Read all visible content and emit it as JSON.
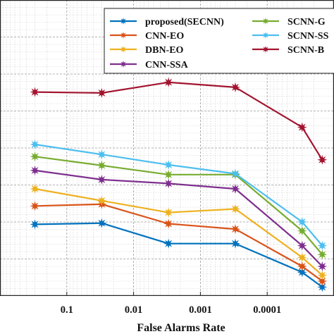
{
  "chart_data": {
    "type": "line",
    "xlabel": "False Alarms Rate",
    "ylabel": "",
    "x_scale": "log-reversed",
    "x_tick_labels": [
      "0.1",
      "0.01",
      "0.001",
      "0.0001"
    ],
    "x_ticks": [
      0.1,
      0.01,
      0.001,
      0.0001
    ],
    "xlim": [
      1,
      1e-05
    ],
    "ylim": [
      0,
      1
    ],
    "grid": true,
    "minor_grid": true,
    "legend_position": "top-right",
    "x": [
      0.3,
      0.03,
      0.003,
      0.0003,
      3e-05,
      1.5e-05
    ],
    "series": [
      {
        "name": "proposed(SECNN)",
        "color": "#0072BD",
        "values": [
          0.242,
          0.246,
          0.177,
          0.177,
          0.08,
          0.03
        ]
      },
      {
        "name": "CNN-EO",
        "color": "#D95319",
        "values": [
          0.304,
          0.31,
          0.244,
          0.226,
          0.1,
          0.05
        ]
      },
      {
        "name": "DBN-EO",
        "color": "#EDB120",
        "values": [
          0.362,
          0.322,
          0.282,
          0.294,
          0.13,
          0.07
        ]
      },
      {
        "name": "CNN-SSA",
        "color": "#7E2F8E",
        "values": [
          0.424,
          0.393,
          0.38,
          0.362,
          0.17,
          0.1
        ]
      },
      {
        "name": "SCNN-G",
        "color": "#77AC30",
        "values": [
          0.471,
          0.441,
          0.41,
          0.41,
          0.22,
          0.14
        ]
      },
      {
        "name": "SCNN-SS",
        "color": "#4DBEEE",
        "values": [
          0.512,
          0.478,
          0.443,
          0.413,
          0.25,
          0.17
        ]
      },
      {
        "name": "SCNN-B",
        "color": "#A2142F",
        "values": [
          0.689,
          0.686,
          0.722,
          0.705,
          0.57,
          0.46
        ]
      }
    ]
  }
}
